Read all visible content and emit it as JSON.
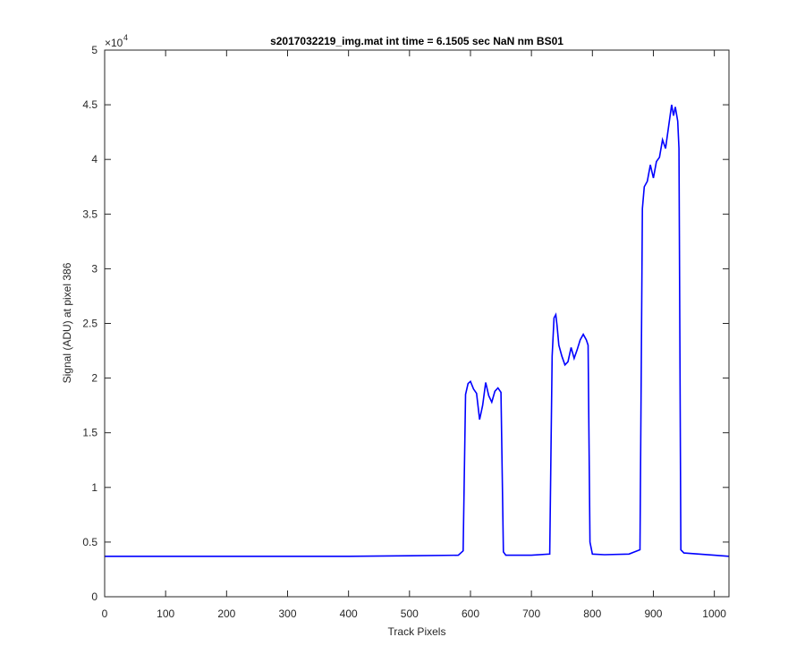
{
  "chart_data": {
    "type": "line",
    "title": "s2017032219_img.mat int time = 6.1505 sec  NaN nm BS01",
    "xlabel": "Track Pixels",
    "ylabel": "Signal (ADU) at pixel 386",
    "xlim": [
      0,
      1024
    ],
    "ylim": [
      0,
      50000
    ],
    "y_multiplier_label": {
      "base": "×10",
      "exponent": "4"
    },
    "x_ticks": [
      0,
      100,
      200,
      300,
      400,
      500,
      600,
      700,
      800,
      900,
      1000
    ],
    "x_tick_labels": [
      "0",
      "100",
      "200",
      "300",
      "400",
      "500",
      "600",
      "700",
      "800",
      "900",
      "1000"
    ],
    "y_ticks": [
      0,
      5000,
      10000,
      15000,
      20000,
      25000,
      30000,
      35000,
      40000,
      45000,
      50000
    ],
    "y_tick_labels": [
      "0",
      "0.5",
      "1",
      "1.5",
      "2",
      "2.5",
      "3",
      "3.5",
      "4",
      "4.5",
      "5"
    ],
    "grid": false,
    "line_color": "#0000ff",
    "series": [
      {
        "x": [
          0,
          100,
          200,
          300,
          400,
          500,
          580,
          588,
          592,
          596,
          600,
          605,
          610,
          615,
          620,
          625,
          630,
          635,
          640,
          645,
          650,
          654,
          658,
          670,
          700,
          730,
          734,
          737,
          740,
          742,
          745,
          750,
          755,
          760,
          765,
          770,
          775,
          780,
          785,
          790,
          793,
          796,
          800,
          820,
          860,
          878,
          882,
          885,
          890,
          895,
          900,
          905,
          910,
          915,
          920,
          925,
          930,
          933,
          936,
          940,
          942,
          945,
          950,
          1000,
          1024
        ],
        "y": [
          3700,
          3700,
          3700,
          3700,
          3700,
          3750,
          3800,
          4200,
          18500,
          19500,
          19700,
          19000,
          18600,
          16200,
          17500,
          19600,
          18400,
          17800,
          18800,
          19100,
          18700,
          4100,
          3800,
          3800,
          3800,
          3900,
          22000,
          25500,
          25800,
          24800,
          23000,
          22000,
          21200,
          21500,
          22800,
          21800,
          22600,
          23500,
          24000,
          23500,
          23000,
          5000,
          3900,
          3850,
          3900,
          4300,
          35500,
          37500,
          38000,
          39500,
          38300,
          39800,
          40200,
          41800,
          41000,
          43000,
          45000,
          44000,
          44800,
          43500,
          41000,
          4300,
          4000,
          3800,
          3700
        ]
      }
    ]
  }
}
